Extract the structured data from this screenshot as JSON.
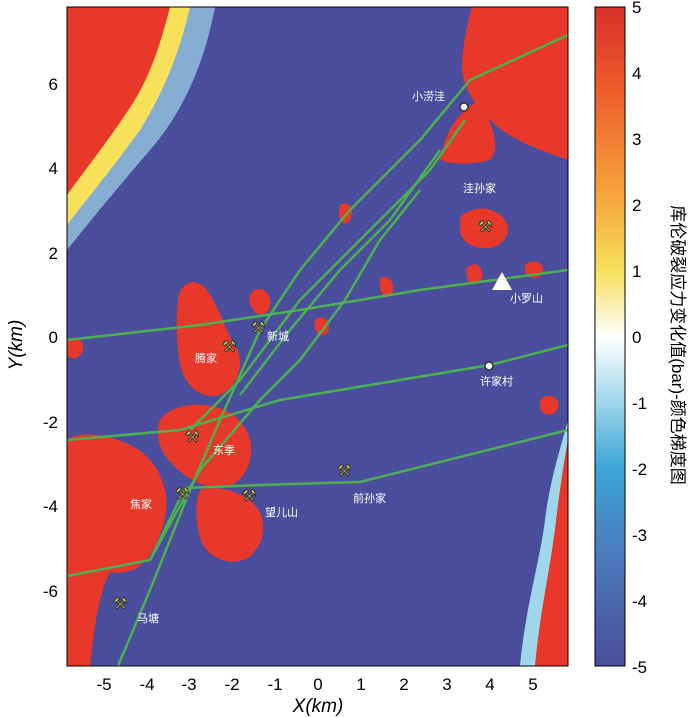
{
  "map": {
    "x_axis_label": "X(km)",
    "y_axis_label": "Y(km)",
    "x_ticks": [
      "-5",
      "-4",
      "-3",
      "-2",
      "-1",
      "0",
      "1",
      "2",
      "3",
      "4",
      "5"
    ],
    "y_ticks": [
      "6",
      "4",
      "2",
      "0",
      "-2",
      "-4",
      "-6"
    ],
    "places": [
      {
        "label": "小涝洼",
        "kind": "town"
      },
      {
        "label": "洼孙家",
        "kind": "label"
      },
      {
        "label": "小罗山",
        "kind": "peak"
      },
      {
        "label": "新城",
        "kind": "mine"
      },
      {
        "label": "腾家",
        "kind": "mine"
      },
      {
        "label": "许家村",
        "kind": "town"
      },
      {
        "label": "东季",
        "kind": "mine"
      },
      {
        "label": "前孙家",
        "kind": "mine"
      },
      {
        "label": "焦家",
        "kind": "mine"
      },
      {
        "label": "望儿山",
        "kind": "mine"
      },
      {
        "label": "马塘",
        "kind": "mine"
      }
    ]
  },
  "colorbar": {
    "title": "库伦破裂应力变化值(bar)-颜色梯度图",
    "ticks": [
      "5",
      "4",
      "3",
      "2",
      "1",
      "0",
      "-1",
      "-2",
      "-3",
      "-4",
      "-5"
    ]
  },
  "colors": {
    "background_low": "#4a4e9c",
    "high": "#e8382a",
    "fault": "#4caf50"
  }
}
